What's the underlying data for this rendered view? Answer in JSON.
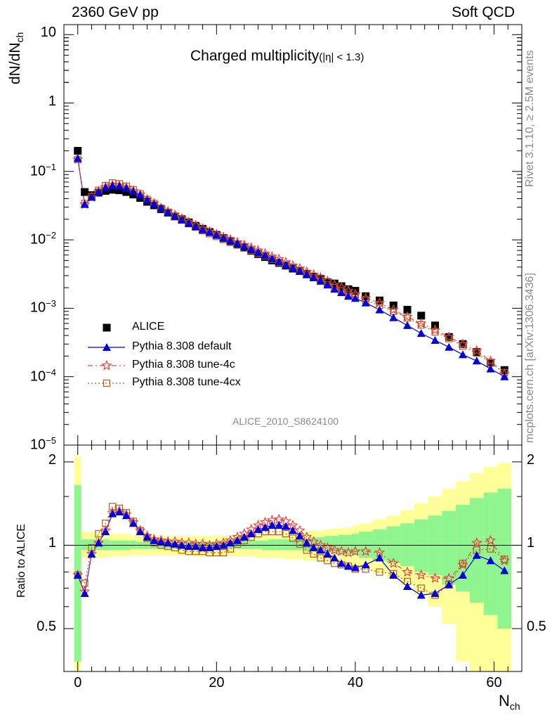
{
  "header": {
    "left": "2360 GeV pp",
    "right": "Soft QCD"
  },
  "side": {
    "rivet": "Rivet 3.1.10, ≥ 2.5M events",
    "mcplots": "mcplots.cern.ch [arXiv:1306.3436]"
  },
  "analysis_id": "ALICE_2010_S8624100",
  "chart_data": {
    "type": "scatter",
    "title": "Charged multiplicity",
    "title_suffix": "(|η| < 1.3)",
    "ylabel_main": "dN/dN",
    "ylabel_main_sub": "ch",
    "ylabel_ratio": "Ratio to ALICE",
    "xlabel": "N",
    "xlabel_sub": "ch",
    "log_y_main": true,
    "xlim": [
      -2,
      64
    ],
    "ylim_main": [
      1e-05,
      14
    ],
    "ylim_ratio": [
      0.35,
      2.3
    ],
    "x_ticks": [
      "0",
      "20",
      "40",
      "60"
    ],
    "y_ticks_main": [
      "10",
      "1",
      "10^-1",
      "10^-2",
      "10^-3",
      "10^-4",
      "10^-5"
    ],
    "y_ticks_ratio": [
      "0.5",
      "1",
      "2"
    ],
    "legend": [
      {
        "label": "ALICE",
        "color": "#000000",
        "marker": "square"
      },
      {
        "label": "Pythia 8.308 default",
        "color": "#0000dd",
        "marker": "triangle"
      },
      {
        "label": "Pythia 8.308 tune-4c",
        "color": "#e84040",
        "marker": "star"
      },
      {
        "label": "Pythia 8.308 tune-4cx",
        "color": "#b85a20",
        "marker": "open-square"
      }
    ],
    "series": [
      {
        "name": "ALICE",
        "x": [
          0,
          1,
          2,
          3,
          4,
          5,
          6,
          7,
          8,
          9,
          10,
          11,
          12,
          13,
          14,
          15,
          16,
          17,
          18,
          19,
          20,
          21,
          22,
          23,
          24,
          25,
          26,
          27,
          28,
          29,
          30,
          31,
          32,
          33,
          34,
          35,
          36,
          37,
          38,
          39,
          40,
          41.5,
          43.5,
          45.5,
          47.5,
          49.5,
          51.5,
          53.5,
          55.5,
          57.5,
          59.5,
          61.5
        ],
        "y": [
          0.2,
          0.05,
          0.045,
          0.049,
          0.052,
          0.054,
          0.053,
          0.05,
          0.046,
          0.041,
          0.036,
          0.032,
          0.028,
          0.025,
          0.022,
          0.02,
          0.018,
          0.016,
          0.0145,
          0.013,
          0.0118,
          0.0106,
          0.0096,
          0.0086,
          0.0077,
          0.0069,
          0.0062,
          0.0056,
          0.005,
          0.0046,
          0.0042,
          0.0038,
          0.0035,
          0.0032,
          0.0029,
          0.0027,
          0.0024,
          0.0023,
          0.0021,
          0.0019,
          0.0018,
          0.0015,
          0.0013,
          0.0011,
          0.00095,
          0.00078,
          0.00056,
          0.00038,
          0.0003,
          0.00023,
          0.00016,
          0.000125
        ]
      },
      {
        "name": "Pythia 8.308 default",
        "x": [
          0,
          1,
          2,
          3,
          4,
          5,
          6,
          7,
          8,
          9,
          10,
          11,
          12,
          13,
          14,
          15,
          16,
          17,
          18,
          19,
          20,
          21,
          22,
          23,
          24,
          25,
          26,
          27,
          28,
          29,
          30,
          31,
          32,
          33,
          34,
          35,
          36,
          37,
          38,
          39,
          40,
          41.5,
          43.5,
          45.5,
          47.5,
          49.5,
          51.5,
          53.5,
          55.5,
          57.5,
          59.5,
          61.5
        ],
        "y": [
          0.155,
          0.033,
          0.042,
          0.05,
          0.058,
          0.062,
          0.061,
          0.057,
          0.051,
          0.045,
          0.038,
          0.033,
          0.029,
          0.025,
          0.022,
          0.0195,
          0.0174,
          0.0156,
          0.014,
          0.0128,
          0.0117,
          0.0106,
          0.0097,
          0.0088,
          0.008,
          0.0073,
          0.0066,
          0.0059,
          0.0053,
          0.0048,
          0.0043,
          0.0039,
          0.0035,
          0.0031,
          0.0028,
          0.0025,
          0.0022,
          0.0019,
          0.0017,
          0.0015,
          0.0014,
          0.0012,
          0.00095,
          0.00073,
          0.00056,
          0.00043,
          0.00034,
          0.00027,
          0.00021,
          0.00017,
          0.00013,
          0.0001
        ],
        "ratio_y": [
          0.78,
          0.67,
          0.93,
          1.02,
          1.12,
          1.3,
          1.32,
          1.28,
          1.2,
          1.12,
          1.07,
          1.04,
          1.03,
          1.02,
          1.01,
          1.0,
          0.99,
          0.99,
          0.98,
          0.98,
          0.99,
          1.0,
          1.02,
          1.04,
          1.07,
          1.1,
          1.14,
          1.16,
          1.18,
          1.18,
          1.17,
          1.13,
          1.08,
          1.02,
          0.98,
          0.96,
          0.93,
          0.9,
          0.86,
          0.84,
          0.83,
          0.85,
          0.9,
          0.78,
          0.71,
          0.66,
          0.67,
          0.72,
          0.78,
          0.92,
          0.88,
          0.81
        ]
      },
      {
        "name": "Pythia 8.308 tune-4c",
        "x": [
          0,
          1,
          2,
          3,
          4,
          5,
          6,
          7,
          8,
          9,
          10,
          11,
          12,
          13,
          14,
          15,
          16,
          17,
          18,
          19,
          20,
          21,
          22,
          23,
          24,
          25,
          26,
          27,
          28,
          29,
          30,
          31,
          32,
          33,
          34,
          35,
          36,
          37,
          38,
          39,
          40,
          41.5,
          43.5,
          45.5,
          47.5,
          49.5,
          51.5,
          53.5,
          55.5,
          57.5,
          59.5,
          61.5
        ],
        "y": [
          0.15,
          0.033,
          0.042,
          0.051,
          0.059,
          0.063,
          0.062,
          0.058,
          0.052,
          0.046,
          0.039,
          0.034,
          0.029,
          0.026,
          0.023,
          0.0205,
          0.0182,
          0.0163,
          0.0146,
          0.0132,
          0.0121,
          0.011,
          0.0101,
          0.0092,
          0.0084,
          0.0077,
          0.007,
          0.0063,
          0.0057,
          0.0052,
          0.0047,
          0.0042,
          0.0038,
          0.0034,
          0.0031,
          0.0028,
          0.0025,
          0.0022,
          0.002,
          0.0018,
          0.0016,
          0.0014,
          0.0012,
          0.00095,
          0.00075,
          0.0006,
          0.00048,
          0.00038,
          0.0003,
          0.00024,
          0.00017,
          0.00011
        ],
        "ratio_y": [
          0.78,
          0.68,
          0.93,
          1.02,
          1.13,
          1.31,
          1.33,
          1.29,
          1.21,
          1.13,
          1.08,
          1.05,
          1.04,
          1.03,
          1.03,
          1.02,
          1.02,
          1.01,
          1.01,
          1.0,
          1.01,
          1.02,
          1.04,
          1.07,
          1.1,
          1.14,
          1.18,
          1.21,
          1.23,
          1.24,
          1.22,
          1.18,
          1.13,
          1.07,
          1.03,
          1.0,
          0.98,
          0.96,
          0.95,
          0.94,
          0.95,
          0.95,
          0.94,
          0.86,
          0.8,
          0.78,
          0.76,
          0.76,
          0.85,
          1.02,
          1.04,
          0.88
        ]
      },
      {
        "name": "Pythia 8.308 tune-4cx",
        "x": [
          0,
          1,
          2,
          3,
          4,
          5,
          6,
          7,
          8,
          9,
          10,
          11,
          12,
          13,
          14,
          15,
          16,
          17,
          18,
          19,
          20,
          21,
          22,
          23,
          24,
          25,
          26,
          27,
          28,
          29,
          30,
          31,
          32,
          33,
          34,
          35,
          36,
          37,
          38,
          39,
          40,
          41.5,
          43.5,
          45.5,
          47.5,
          49.5,
          51.5,
          53.5,
          55.5,
          57.5,
          59.5,
          61.5
        ],
        "y": [
          0.15,
          0.034,
          0.043,
          0.053,
          0.062,
          0.068,
          0.066,
          0.061,
          0.054,
          0.047,
          0.039,
          0.034,
          0.029,
          0.025,
          0.022,
          0.0195,
          0.0172,
          0.0153,
          0.0136,
          0.0123,
          0.0112,
          0.0101,
          0.0092,
          0.0084,
          0.0076,
          0.007,
          0.0064,
          0.0058,
          0.0052,
          0.0047,
          0.0043,
          0.0039,
          0.0035,
          0.0031,
          0.0028,
          0.0025,
          0.0022,
          0.002,
          0.0018,
          0.0016,
          0.0015,
          0.0013,
          0.0011,
          0.0009,
          0.00072,
          0.00057,
          0.00045,
          0.00036,
          0.00028,
          0.00022,
          0.00016,
          0.000115
        ],
        "ratio_y": [
          0.78,
          0.73,
          0.98,
          1.1,
          1.2,
          1.38,
          1.36,
          1.31,
          1.22,
          1.13,
          1.06,
          1.02,
          1.0,
          0.99,
          0.98,
          0.96,
          0.95,
          0.95,
          0.95,
          0.94,
          0.94,
          0.94,
          0.97,
          1.01,
          1.04,
          1.07,
          1.1,
          1.12,
          1.12,
          1.12,
          1.1,
          1.06,
          1.01,
          0.96,
          0.93,
          0.9,
          0.88,
          0.86,
          0.85,
          0.84,
          0.82,
          0.82,
          0.8,
          0.79,
          0.74,
          0.7,
          0.66,
          0.72,
          0.86,
          0.96,
          0.97,
          0.89
        ]
      }
    ],
    "bands": {
      "x_edges": [
        -0.5,
        0.5,
        1.5,
        2.5,
        3.5,
        4.5,
        5.5,
        6.5,
        7.5,
        8.5,
        9.5,
        10.5,
        11.5,
        12.5,
        13.5,
        14.5,
        15.5,
        16.5,
        17.5,
        18.5,
        19.5,
        20.5,
        21.5,
        22.5,
        23.5,
        24.5,
        25.5,
        26.5,
        27.5,
        28.5,
        29.5,
        30.5,
        31.5,
        32.5,
        33.5,
        34.5,
        35.5,
        36.5,
        37.5,
        38.5,
        39.5,
        40.5,
        42.5,
        44.5,
        46.5,
        48.5,
        50.5,
        52.5,
        54.5,
        56.5,
        58.5,
        60.5,
        62.5
      ],
      "inner_lo": [
        0.38,
        0.96,
        0.96,
        0.96,
        0.96,
        0.96,
        0.96,
        0.96,
        0.97,
        0.97,
        0.97,
        0.97,
        0.97,
        0.97,
        0.97,
        0.97,
        0.97,
        0.97,
        0.97,
        0.97,
        0.97,
        0.97,
        0.97,
        0.97,
        0.97,
        0.97,
        0.97,
        0.96,
        0.96,
        0.96,
        0.96,
        0.96,
        0.96,
        0.95,
        0.95,
        0.95,
        0.94,
        0.94,
        0.93,
        0.93,
        0.92,
        0.9,
        0.88,
        0.86,
        0.84,
        0.8,
        0.78,
        0.72,
        0.68,
        0.62,
        0.56,
        0.5
      ],
      "inner_hi": [
        1.65,
        1.05,
        1.05,
        1.05,
        1.05,
        1.04,
        1.04,
        1.04,
        1.04,
        1.03,
        1.03,
        1.03,
        1.03,
        1.03,
        1.03,
        1.03,
        1.03,
        1.03,
        1.03,
        1.03,
        1.03,
        1.03,
        1.03,
        1.03,
        1.04,
        1.04,
        1.04,
        1.04,
        1.05,
        1.05,
        1.05,
        1.05,
        1.06,
        1.06,
        1.07,
        1.07,
        1.08,
        1.08,
        1.09,
        1.09,
        1.1,
        1.12,
        1.14,
        1.17,
        1.2,
        1.24,
        1.28,
        1.33,
        1.4,
        1.48,
        1.55,
        1.6
      ],
      "outer_lo": [
        0.25,
        0.9,
        0.9,
        0.9,
        0.9,
        0.91,
        0.91,
        0.91,
        0.92,
        0.92,
        0.92,
        0.92,
        0.92,
        0.92,
        0.92,
        0.92,
        0.92,
        0.91,
        0.91,
        0.91,
        0.91,
        0.91,
        0.91,
        0.91,
        0.91,
        0.91,
        0.9,
        0.9,
        0.9,
        0.9,
        0.89,
        0.89,
        0.89,
        0.88,
        0.88,
        0.87,
        0.87,
        0.86,
        0.86,
        0.85,
        0.84,
        0.82,
        0.79,
        0.76,
        0.72,
        0.66,
        0.6,
        0.52,
        0.38,
        0.3,
        0.3,
        0.3
      ],
      "outer_hi": [
        2.1,
        1.12,
        1.12,
        1.11,
        1.11,
        1.1,
        1.1,
        1.1,
        1.09,
        1.09,
        1.09,
        1.08,
        1.08,
        1.08,
        1.08,
        1.08,
        1.08,
        1.08,
        1.08,
        1.08,
        1.08,
        1.08,
        1.08,
        1.09,
        1.09,
        1.09,
        1.09,
        1.1,
        1.1,
        1.1,
        1.11,
        1.11,
        1.11,
        1.12,
        1.13,
        1.13,
        1.14,
        1.15,
        1.15,
        1.16,
        1.18,
        1.2,
        1.24,
        1.28,
        1.34,
        1.42,
        1.5,
        1.6,
        1.7,
        1.82,
        1.92,
        1.98
      ],
      "inner_color": "#8ff58f",
      "outer_color": "#ffff99"
    }
  }
}
